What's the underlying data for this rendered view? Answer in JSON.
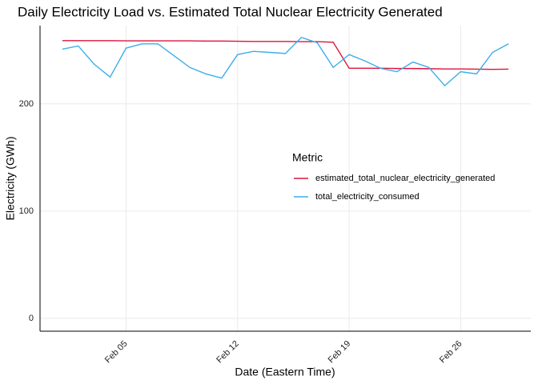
{
  "chart_data": {
    "type": "line",
    "title": "Daily Electricity Load vs. Estimated Total Nuclear Electricity Generated",
    "x_label": "Date (Eastern Time)",
    "y_label": "Electricity (GWh)",
    "legend_title": "Metric",
    "x": [
      1,
      2,
      3,
      4,
      5,
      6,
      7,
      8,
      9,
      10,
      11,
      12,
      13,
      14,
      15,
      16,
      17,
      18,
      19,
      20,
      21,
      22,
      23,
      24,
      25,
      26,
      27,
      28,
      29
    ],
    "series": [
      {
        "name": "estimated_total_nuclear_electricity_generated",
        "color": "#dc143c",
        "values": [
          259,
          259,
          259,
          259,
          258.8,
          258.8,
          258.8,
          258.8,
          258.8,
          258.6,
          258.6,
          258.4,
          258.2,
          258.2,
          258.2,
          258,
          258,
          257.5,
          233.2,
          233.2,
          233.2,
          233,
          233,
          232.8,
          232.6,
          232.6,
          232.4,
          232.2,
          232.4
        ]
      },
      {
        "name": "total_electricity_consumed",
        "color": "#3daee9",
        "values": [
          251,
          254,
          237,
          225,
          252,
          256,
          256,
          245,
          234,
          228,
          224,
          246,
          249,
          248,
          247,
          262,
          257,
          234,
          246,
          240,
          233,
          230,
          239,
          234,
          217,
          230,
          228,
          248,
          256
        ]
      }
    ],
    "xlim": [
      -0.4,
      30.4
    ],
    "xticks": [
      {
        "value": 5,
        "label": "Feb 05"
      },
      {
        "value": 12,
        "label": "Feb 12"
      },
      {
        "value": 19,
        "label": "Feb 19"
      },
      {
        "value": 26,
        "label": "Feb 26"
      }
    ],
    "ylim": [
      -12,
      273
    ],
    "yticks": [
      0,
      100,
      200
    ],
    "grid": true,
    "legend": "right"
  }
}
